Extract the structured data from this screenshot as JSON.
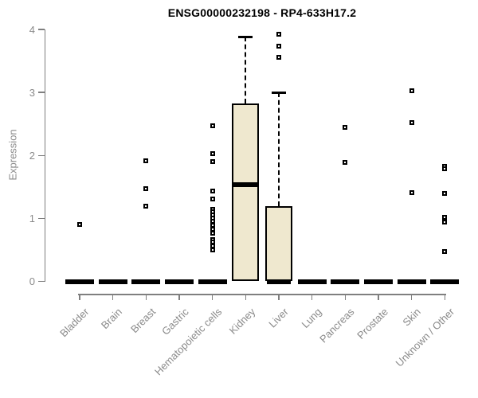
{
  "chart_data": {
    "type": "boxplot",
    "title": "ENSG00000232198 - RP4-633H17.2",
    "xlabel": "",
    "ylabel": "Expression",
    "ylim": [
      0,
      4
    ],
    "yticks": [
      0,
      1,
      2,
      3,
      4
    ],
    "grid": false,
    "legend": "none",
    "categories": [
      "Bladder",
      "Brain",
      "Breast",
      "Gastric",
      "Hematopoietic cells",
      "Kidney",
      "Liver",
      "Lung",
      "Pancreas",
      "Prostate",
      "Skin",
      "Unknown / Other"
    ],
    "boxes": [
      {
        "category": "Bladder",
        "median": 0,
        "q1": 0,
        "q3": 0,
        "whisker_low": 0,
        "whisker_high": 0,
        "outliers": [
          0.9
        ]
      },
      {
        "category": "Brain",
        "median": 0,
        "q1": 0,
        "q3": 0,
        "whisker_low": 0,
        "whisker_high": 0,
        "outliers": []
      },
      {
        "category": "Breast",
        "median": 0,
        "q1": 0,
        "q3": 0,
        "whisker_low": 0,
        "whisker_high": 0,
        "outliers": [
          1.91,
          1.47,
          1.2
        ]
      },
      {
        "category": "Gastric",
        "median": 0,
        "q1": 0,
        "q3": 0,
        "whisker_low": 0,
        "whisker_high": 0,
        "outliers": []
      },
      {
        "category": "Hematopoietic cells",
        "median": 0,
        "q1": 0,
        "q3": 0,
        "whisker_low": 0,
        "whisker_high": 0,
        "outliers": [
          2.47,
          2.03,
          1.9,
          1.43,
          1.31,
          1.14,
          1.1,
          1.05,
          1.0,
          0.95,
          0.89,
          0.83,
          0.76,
          0.66,
          0.62,
          0.56,
          0.5
        ]
      },
      {
        "category": "Kidney",
        "median": 1.54,
        "q1": 0,
        "q3": 2.83,
        "whisker_low": 0,
        "whisker_high": 3.88,
        "outliers": []
      },
      {
        "category": "Liver",
        "median": 0,
        "q1": 0,
        "q3": 1.2,
        "whisker_low": 0,
        "whisker_high": 3.0,
        "outliers": [
          3.92,
          3.73,
          3.56
        ]
      },
      {
        "category": "Lung",
        "median": 0,
        "q1": 0,
        "q3": 0,
        "whisker_low": 0,
        "whisker_high": 0,
        "outliers": []
      },
      {
        "category": "Pancreas",
        "median": 0,
        "q1": 0,
        "q3": 0,
        "whisker_low": 0,
        "whisker_high": 0,
        "outliers": [
          2.45,
          1.89
        ]
      },
      {
        "category": "Prostate",
        "median": 0,
        "q1": 0,
        "q3": 0,
        "whisker_low": 0,
        "whisker_high": 0,
        "outliers": []
      },
      {
        "category": "Skin",
        "median": 0,
        "q1": 0,
        "q3": 0,
        "whisker_low": 0,
        "whisker_high": 0,
        "outliers": [
          3.03,
          2.52,
          1.41
        ]
      },
      {
        "category": "Unknown / Other",
        "median": 0,
        "q1": 0,
        "q3": 0,
        "whisker_low": 0,
        "whisker_high": 0,
        "outliers": [
          1.83,
          1.79,
          1.4,
          1.02,
          0.94,
          0.47
        ]
      }
    ],
    "colors": {
      "background": "#FFFFFF",
      "box_fill": "#EFE8CF",
      "box_border": "#000000",
      "median": "#000000",
      "whisker": "#000000",
      "outlier": "#000000",
      "axis_line": "#7F7F7F",
      "tick_text": "#8A8A8A",
      "title_text": "#000000"
    }
  }
}
